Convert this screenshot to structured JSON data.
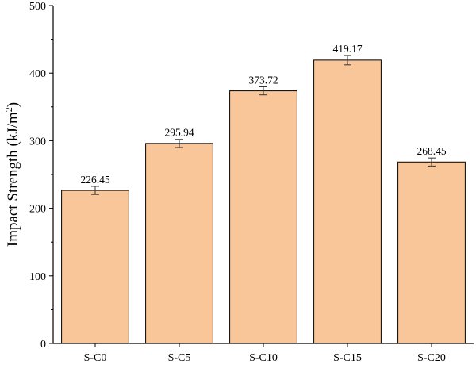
{
  "chart_data": {
    "type": "bar",
    "title": "",
    "xlabel": "",
    "ylabel": "Impact Strength (kJ/m",
    "ylabel_superscript": "2",
    "ylabel_suffix": ")",
    "categories": [
      "S-C0",
      "S-C5",
      "S-C10",
      "S-C15",
      "S-C20"
    ],
    "values": [
      226.45,
      295.94,
      373.72,
      419.17,
      268.45
    ],
    "data_labels": [
      "226.45",
      "295.94",
      "373.72",
      "419.17",
      "268.45"
    ],
    "error": [
      6,
      6,
      6,
      7,
      6
    ],
    "ylim": [
      0,
      500
    ],
    "yticks": [
      0,
      100,
      200,
      300,
      400,
      500
    ],
    "ytick_labels": [
      "0",
      "100",
      "200",
      "300",
      "400",
      "500"
    ],
    "grid": false,
    "legend": "none",
    "colors": {
      "bar_fill": "#f9c69a",
      "bar_stroke": "#000000",
      "axis": "#000000"
    }
  }
}
